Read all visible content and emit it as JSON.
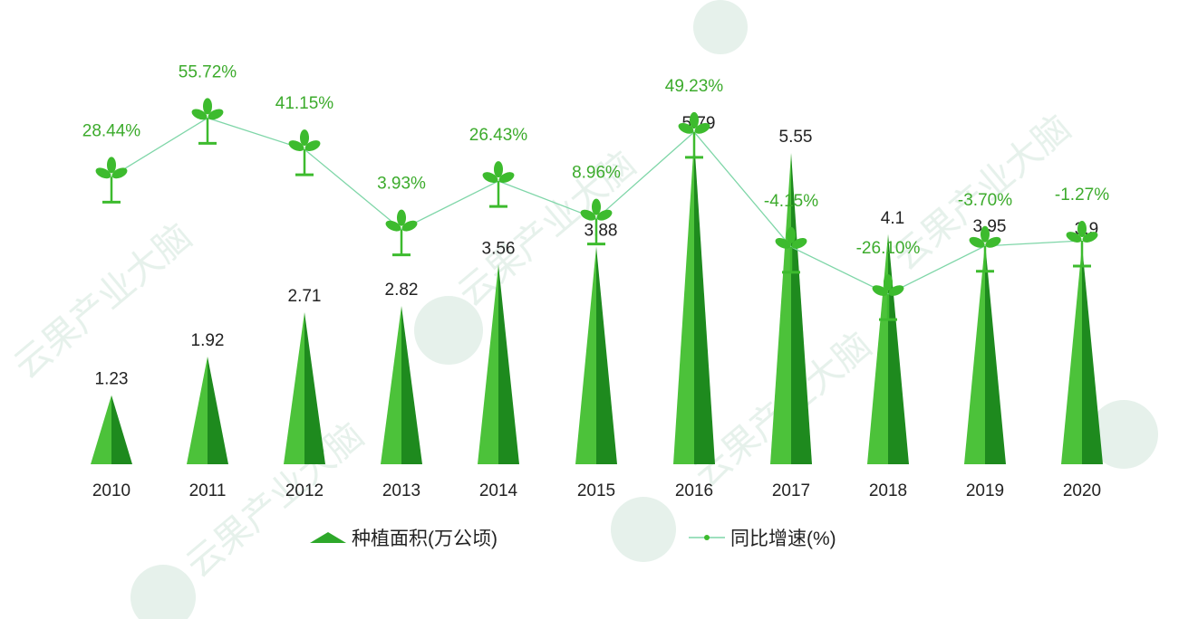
{
  "chart_data": {
    "type": "bar+line",
    "categories": [
      "2010",
      "2011",
      "2012",
      "2013",
      "2014",
      "2015",
      "2016",
      "2017",
      "2018",
      "2019",
      "2020"
    ],
    "series": [
      {
        "name": "种植面积(万公顷)",
        "type": "bar",
        "values": [
          1.23,
          1.92,
          2.71,
          2.82,
          3.56,
          3.88,
          5.79,
          5.55,
          4.1,
          3.95,
          3.9
        ],
        "labels": [
          "1.23",
          "1.92",
          "2.71",
          "2.82",
          "3.56",
          "3.88",
          "5.79",
          "5.55",
          "4.1",
          "3.95",
          "3.9"
        ]
      },
      {
        "name": "同比增速(%)",
        "type": "line",
        "values": [
          28.44,
          55.72,
          41.15,
          3.93,
          26.43,
          8.96,
          49.23,
          -4.15,
          -26.1,
          -3.7,
          -1.27
        ],
        "labels": [
          "28.44%",
          "55.72%",
          "41.15%",
          "3.93%",
          "26.43%",
          "8.96%",
          "49.23%",
          "-4.15%",
          "-26.10%",
          "-3.70%",
          "-1.27%"
        ]
      }
    ],
    "legend_position": "bottom",
    "grid": false,
    "colors": {
      "bar_light": "#4cc23a",
      "bar_dark": "#1e8a1e",
      "line": "#7fd6a8",
      "pct_label": "#3cab2c",
      "marker": "#3dbb2e"
    }
  },
  "watermark": "云果产业大脑 YUNGUO BRAIN"
}
